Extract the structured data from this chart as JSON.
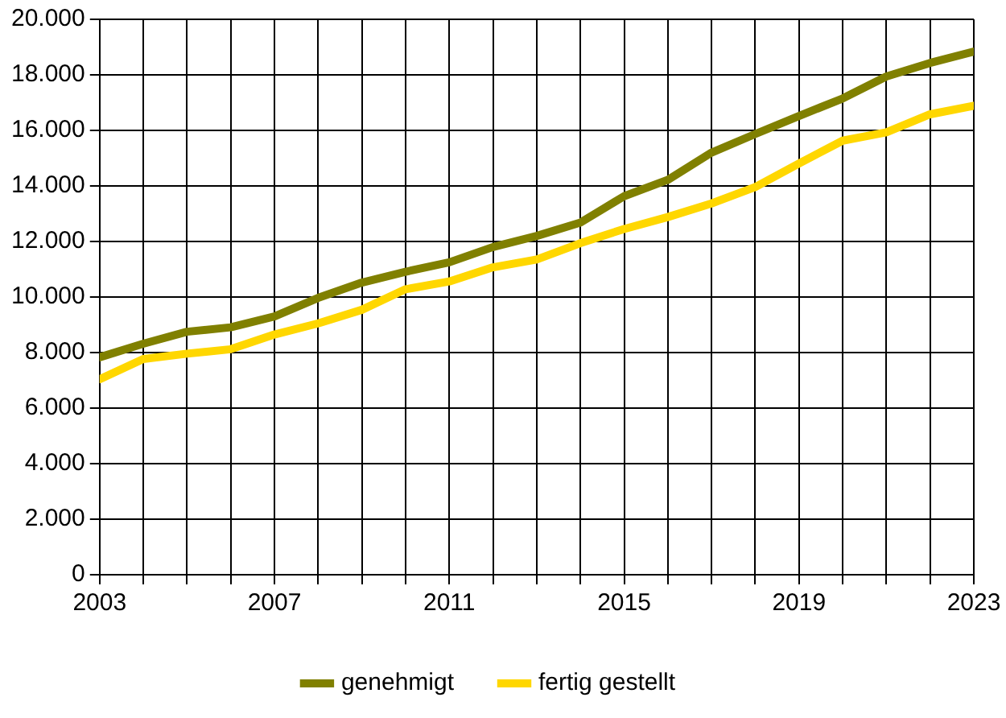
{
  "chart_data": {
    "type": "line",
    "x": [
      2003,
      2004,
      2005,
      2006,
      2007,
      2008,
      2009,
      2010,
      2011,
      2012,
      2013,
      2014,
      2015,
      2016,
      2017,
      2018,
      2019,
      2020,
      2021,
      2022,
      2023
    ],
    "series": [
      {
        "name": "genehmigt",
        "color": "#808000",
        "values": [
          7830,
          8320,
          8750,
          8910,
          9300,
          9970,
          10520,
          10910,
          11250,
          11800,
          12200,
          12680,
          13630,
          14220,
          15200,
          15870,
          16520,
          17150,
          17940,
          18430,
          18840
        ]
      },
      {
        "name": "fertig gestellt",
        "color": "#ffd700",
        "values": [
          7040,
          7770,
          7960,
          8120,
          8650,
          9050,
          9540,
          10280,
          10560,
          11070,
          11350,
          11940,
          12450,
          12880,
          13370,
          13960,
          14810,
          15630,
          15930,
          16580,
          16890
        ]
      }
    ],
    "xlim": [
      2003,
      2023
    ],
    "xticks": [
      2003,
      {
        "value": 2004,
        "label": null
      },
      {
        "value": 2005,
        "label": null
      },
      {
        "value": 2006,
        "label": null
      },
      2007,
      {
        "value": 2008,
        "label": null
      },
      {
        "value": 2009,
        "label": null
      },
      {
        "value": 2010,
        "label": null
      },
      2011,
      {
        "value": 2012,
        "label": null
      },
      {
        "value": 2013,
        "label": null
      },
      {
        "value": 2014,
        "label": null
      },
      2015,
      {
        "value": 2016,
        "label": null
      },
      {
        "value": 2017,
        "label": null
      },
      {
        "value": 2018,
        "label": null
      },
      2019,
      {
        "value": 2020,
        "label": null
      },
      {
        "value": 2021,
        "label": null
      },
      {
        "value": 2022,
        "label": null
      },
      2023
    ],
    "ylim": [
      0,
      20000
    ],
    "yticks": [
      0,
      {
        "value": 2000,
        "label": "2.000"
      },
      {
        "value": 4000,
        "label": "4.000"
      },
      {
        "value": 6000,
        "label": "6.000"
      },
      {
        "value": 8000,
        "label": "8.000"
      },
      {
        "value": 10000,
        "label": "10.000"
      },
      {
        "value": 12000,
        "label": "12.000"
      },
      {
        "value": 14000,
        "label": "14.000"
      },
      {
        "value": 16000,
        "label": "16.000"
      },
      {
        "value": 18000,
        "label": "18.000"
      },
      {
        "value": 20000,
        "label": "20.000"
      }
    ],
    "grid": true,
    "legend": "bottom",
    "marker": "none",
    "line_style": "solid"
  }
}
